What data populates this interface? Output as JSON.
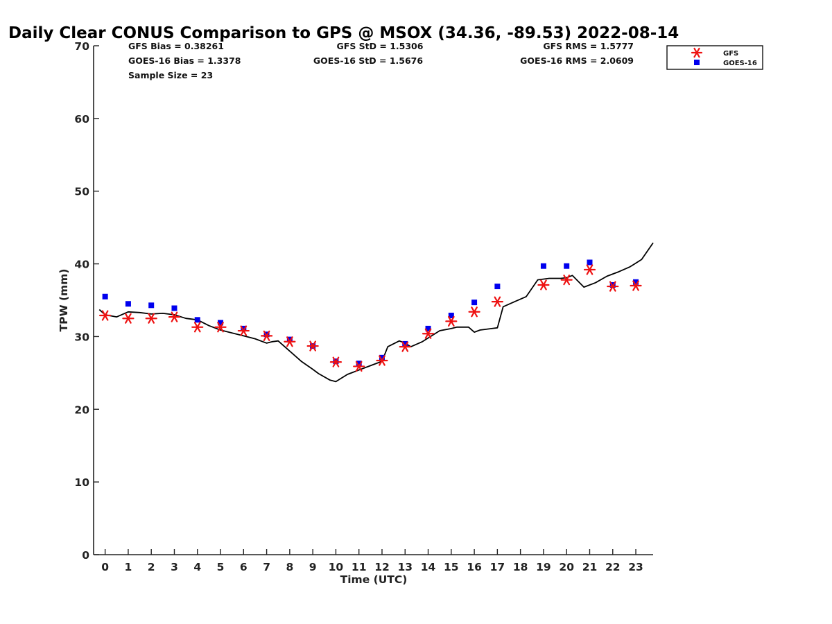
{
  "chart_data": {
    "type": "line",
    "title": "Daily Clear CONUS Comparison to GPS @ MSOX (34.36, -89.53) 2022-08-14",
    "xlabel": "Time (UTC)",
    "ylabel": "TPW (mm)",
    "xlim": [
      -0.5,
      23.75
    ],
    "ylim": [
      0,
      70
    ],
    "xticks": [
      0,
      1,
      2,
      3,
      4,
      5,
      6,
      7,
      8,
      9,
      10,
      11,
      12,
      13,
      14,
      15,
      16,
      17,
      18,
      19,
      20,
      21,
      22,
      23
    ],
    "yticks": [
      0,
      10,
      20,
      30,
      40,
      50,
      60,
      70
    ],
    "stats": {
      "gfs_bias": "GFS Bias = 0.38261",
      "gfs_std": "GFS StD = 1.5306",
      "gfs_rms": "GFS RMS = 1.5777",
      "goes_bias": "GOES-16 Bias = 1.3378",
      "goes_std": "GOES-16 StD = 1.5676",
      "goes_rms": "GOES-16 RMS = 2.0609",
      "sample_size": "Sample Size = 23"
    },
    "legend": {
      "placement": "top-right",
      "gfs": "GFS",
      "goes": "GOES-16"
    },
    "gps_line": {
      "name": "GPS",
      "color": "#000000",
      "x": [
        -0.25,
        0,
        0.5,
        1,
        1.5,
        2,
        2.5,
        3,
        3.5,
        4,
        4.5,
        5,
        5.5,
        6,
        6.5,
        7,
        7.25,
        7.5,
        8,
        8.5,
        9,
        9.25,
        9.75,
        10,
        10.5,
        11,
        11.5,
        12,
        12.25,
        12.75,
        13,
        13.25,
        13.75,
        14,
        14.5,
        15,
        15.25,
        15.75,
        16,
        16.25,
        16.75,
        17,
        17.25,
        17.75,
        18.25,
        18.75,
        19.25,
        19.75,
        20,
        20.25,
        20.75,
        21.25,
        21.75,
        22.25,
        22.75,
        23.25,
        23.75
      ],
      "y": [
        33.7,
        33.0,
        32.7,
        33.4,
        33.3,
        33.1,
        33.2,
        33.0,
        32.5,
        32.3,
        31.5,
        30.9,
        30.5,
        30.1,
        29.7,
        29.1,
        29.3,
        29.4,
        28.0,
        26.6,
        25.5,
        24.9,
        24.0,
        23.8,
        24.8,
        25.4,
        26.0,
        26.6,
        28.6,
        29.4,
        29.1,
        28.6,
        29.3,
        29.8,
        30.8,
        31.1,
        31.3,
        31.3,
        30.6,
        30.9,
        31.1,
        31.2,
        34.1,
        34.8,
        35.5,
        37.8,
        38.0,
        38.0,
        38.1,
        38.4,
        36.8,
        37.4,
        38.3,
        38.9,
        39.6,
        40.6,
        42.9
      ]
    },
    "series": [
      {
        "name": "GFS",
        "marker": "asterisk",
        "color": "#ee1111",
        "x": [
          0,
          1,
          2,
          3,
          4,
          5,
          6,
          7,
          8,
          9,
          10,
          11,
          12,
          13,
          14,
          15,
          16,
          17,
          19,
          20,
          21,
          22,
          23
        ],
        "values": [
          32.9,
          32.5,
          32.5,
          32.7,
          31.3,
          31.3,
          30.8,
          30.1,
          29.3,
          28.7,
          26.5,
          25.9,
          26.7,
          28.6,
          30.4,
          32.1,
          33.4,
          34.8,
          37.1,
          37.8,
          39.2,
          36.9,
          37.0
        ]
      },
      {
        "name": "GOES-16",
        "marker": "square",
        "color": "#0000ee",
        "x": [
          0,
          1,
          2,
          3,
          4,
          5,
          6,
          7,
          8,
          9,
          10,
          11,
          12,
          13,
          14,
          15,
          16,
          17,
          19,
          20,
          21,
          22,
          23
        ],
        "values": [
          35.5,
          34.5,
          34.3,
          33.9,
          32.3,
          31.9,
          31.1,
          30.3,
          29.6,
          28.7,
          26.6,
          26.3,
          27.1,
          29.0,
          31.1,
          32.9,
          34.7,
          36.9,
          39.7,
          39.7,
          40.2,
          37.1,
          37.5
        ]
      }
    ]
  }
}
